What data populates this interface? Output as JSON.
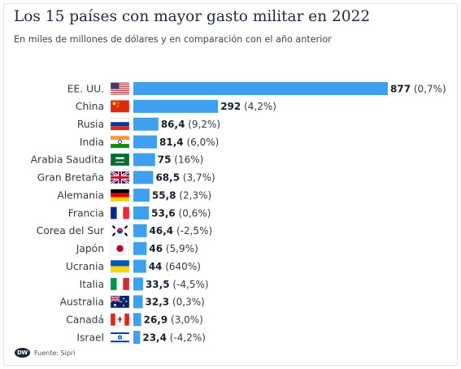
{
  "title": "Los 15 países con mayor gasto militar en 2022",
  "subtitle": "En miles de millones de dólares y en comparación con el año anterior",
  "source": "Fuente: Sipri",
  "logo": "DW",
  "colors": {
    "bar": "#3fa0f0",
    "text": "#333b46"
  },
  "chart_data": {
    "type": "bar",
    "orientation": "horizontal",
    "categories": [
      "EE. UU.",
      "China",
      "Rusia",
      "India",
      "Arabia Saudita",
      "Gran Bretaña",
      "Alemania",
      "Francia",
      "Corea del Sur",
      "Japón",
      "Ucrania",
      "Italia",
      "Australia",
      "Canadá",
      "Israel"
    ],
    "values": [
      877,
      292,
      86.4,
      81.4,
      75,
      68.5,
      55.8,
      53.6,
      46.4,
      46,
      44,
      33.5,
      32.3,
      26.9,
      23.4
    ],
    "value_labels": [
      "877",
      "292",
      "86,4",
      "81,4",
      "75",
      "68,5",
      "55,8",
      "53,6",
      "46,4",
      "46",
      "44",
      "33,5",
      "32,3",
      "26,9",
      "23,4"
    ],
    "change_labels": [
      "(0,7%)",
      "(4,2%)",
      "(9,2%)",
      "(6,0%)",
      "(16%)",
      "(3,7%)",
      "(2,3%)",
      "(0,6%)",
      "(-2,5%)",
      "(5,9%)",
      "(640%)",
      "(-4,5%)",
      "(0,3%)",
      "(3,0%)",
      "(-4,2%)"
    ],
    "flags": [
      "us-flag-icon",
      "china-flag-icon",
      "russia-flag-icon",
      "india-flag-icon",
      "saudi-arabia-flag-icon",
      "uk-flag-icon",
      "germany-flag-icon",
      "france-flag-icon",
      "south-korea-flag-icon",
      "japan-flag-icon",
      "ukraine-flag-icon",
      "italy-flag-icon",
      "australia-flag-icon",
      "canada-flag-icon",
      "israel-flag-icon"
    ],
    "xlim": [
      0,
      877
    ],
    "grid": false,
    "legend": "none"
  }
}
